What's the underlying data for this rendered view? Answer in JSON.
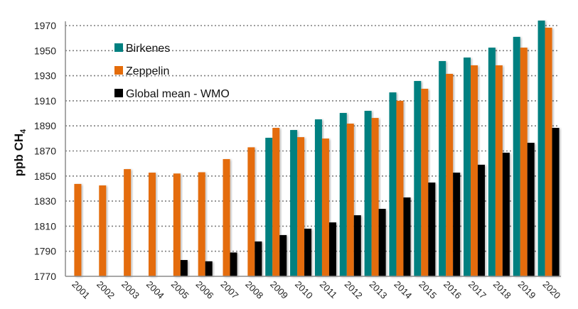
{
  "chart_data": {
    "type": "bar",
    "title": "",
    "xlabel": "",
    "ylabel": "ppb CH",
    "ylabel_subscript": "4",
    "ylim": [
      1770,
      1980
    ],
    "yticks": [
      1770,
      1790,
      1810,
      1830,
      1850,
      1870,
      1890,
      1910,
      1930,
      1950,
      1970
    ],
    "grid": true,
    "legend_position": "top-left",
    "categories": [
      "2001",
      "2002",
      "2003",
      "2004",
      "2005",
      "2006",
      "2007",
      "2008",
      "2009",
      "2010",
      "2011",
      "2012",
      "2013",
      "2014",
      "2015",
      "2016",
      "2017",
      "2018",
      "2019",
      "2020"
    ],
    "series": [
      {
        "name": "Birkenes",
        "color": "#008080",
        "values": [
          null,
          null,
          null,
          null,
          null,
          null,
          null,
          null,
          1880.5,
          1886.7,
          1895.2,
          1900.3,
          1902,
          1916.7,
          1925.8,
          1941.7,
          1944.5,
          1952.4,
          1961,
          1974
        ]
      },
      {
        "name": "Zeppelin",
        "color": "#E46C0A",
        "values": [
          1843.7,
          1842.5,
          1855.5,
          1852.7,
          1852,
          1853,
          1863.5,
          1872.9,
          1888.4,
          1881,
          1879.9,
          1891.8,
          1896.3,
          1910,
          1919.6,
          1931.5,
          1938.3,
          1938.3,
          1952.4,
          1968.3
        ]
      },
      {
        "name": "Global mean - WMO",
        "color": "#000000",
        "values": [
          null,
          null,
          null,
          null,
          1783,
          1782,
          1789,
          1797.8,
          1802.9,
          1808,
          1813,
          1818.7,
          1823.8,
          1832.9,
          1844.8,
          1852.7,
          1859,
          1868.6,
          1876.5,
          1888.4
        ]
      }
    ]
  }
}
